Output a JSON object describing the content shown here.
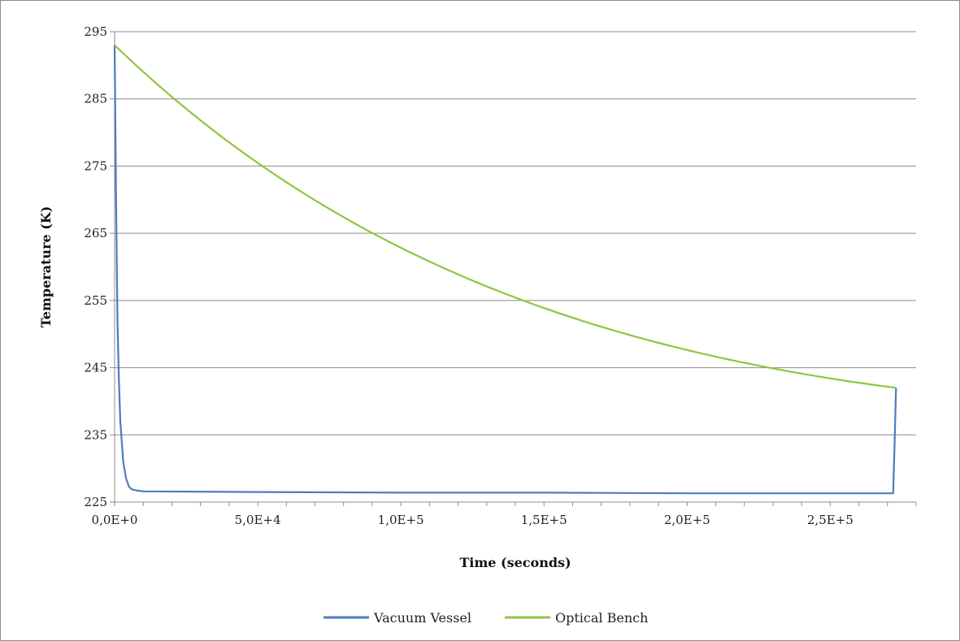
{
  "chart_data": {
    "type": "line",
    "title": "",
    "xlabel": "Time (seconds)",
    "ylabel": "Temperature (K)",
    "xlim": [
      0,
      280000
    ],
    "ylim": [
      225,
      295
    ],
    "x_ticks": [
      0,
      50000,
      100000,
      150000,
      200000,
      250000
    ],
    "x_tick_labels": [
      "0,0E+0",
      "5,0E+4",
      "1,0E+5",
      "1,5E+5",
      "2,0E+5",
      "2,5E+5"
    ],
    "y_ticks": [
      225,
      235,
      245,
      255,
      265,
      275,
      285,
      295
    ],
    "y_tick_labels": [
      "225",
      "235",
      "245",
      "255",
      "265",
      "275",
      "285",
      "295"
    ],
    "grid": "horizontal",
    "legend_position": "bottom",
    "series": [
      {
        "name": "Vacuum Vessel",
        "color": "#4a7ebb",
        "x": [
          0,
          500,
          1000,
          1500,
          2000,
          3000,
          4000,
          5000,
          6000,
          8000,
          10000,
          50000,
          100000,
          150000,
          200000,
          250000,
          272000,
          272500,
          273000
        ],
        "y": [
          293,
          270,
          252,
          243,
          237,
          231,
          228.5,
          227.3,
          226.9,
          226.7,
          226.6,
          226.5,
          226.4,
          226.4,
          226.3,
          226.3,
          226.3,
          234,
          242
        ]
      },
      {
        "name": "Optical Bench",
        "color": "#8ec640",
        "x": [
          0,
          10000,
          20000,
          30000,
          40000,
          50000,
          60000,
          70000,
          80000,
          90000,
          100000,
          110000,
          120000,
          130000,
          140000,
          150000,
          160000,
          170000,
          180000,
          190000,
          200000,
          210000,
          220000,
          230000,
          240000,
          250000,
          260000,
          273000
        ],
        "y": [
          293,
          289.3,
          285.7,
          282.3,
          279.0,
          275.9,
          272.9,
          270.0,
          267.3,
          264.6,
          262.1,
          259.7,
          257.4,
          255.2,
          253.2,
          251.2,
          249.3,
          247.5,
          245.8,
          244.2,
          242.7,
          241.2,
          239.8,
          238.5,
          237.2,
          243.0,
          242.5,
          242
        ]
      }
    ]
  }
}
